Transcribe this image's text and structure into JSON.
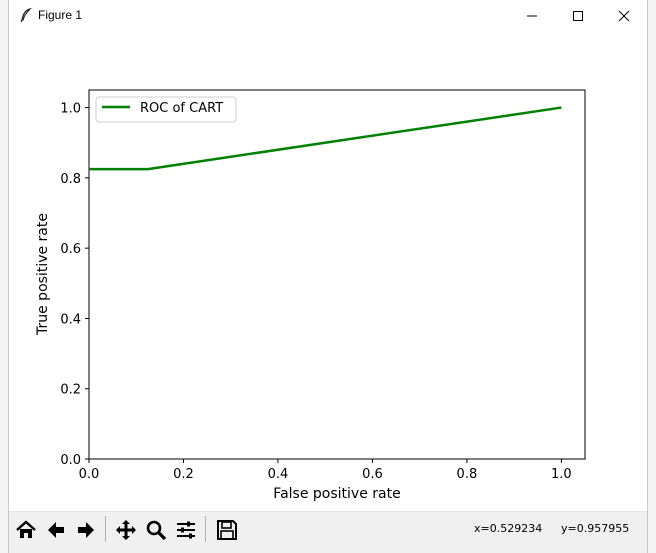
{
  "window": {
    "title": "Figure 1"
  },
  "toolbar": {
    "coord_x": "x=0.529234",
    "coord_y": "y=0.957955",
    "buttons": [
      "home-icon",
      "back-arrow-icon",
      "forward-arrow-icon",
      "pan-icon",
      "zoom-icon",
      "configure-subplots-icon",
      "save-icon"
    ]
  },
  "chart_data": {
    "type": "line",
    "xlabel": "False positive rate",
    "ylabel": "True positive rate",
    "xlim": [
      0.0,
      1.05
    ],
    "ylim": [
      0.0,
      1.05
    ],
    "xticks": [
      0.0,
      0.2,
      0.4,
      0.6,
      0.8,
      1.0
    ],
    "xtick_labels": [
      "0.0",
      "0.2",
      "0.4",
      "0.6",
      "0.8",
      "1.0"
    ],
    "yticks": [
      0.0,
      0.2,
      0.4,
      0.6,
      0.8,
      1.0
    ],
    "ytick_labels": [
      "0.0",
      "0.2",
      "0.4",
      "0.6",
      "0.8",
      "1.0"
    ],
    "legend_position": "top-left",
    "grid": false,
    "series": [
      {
        "name": "ROC of CART",
        "color": "#008000",
        "x": [
          0.0,
          0.125,
          1.0
        ],
        "y": [
          0.825,
          0.825,
          1.0
        ]
      }
    ]
  }
}
